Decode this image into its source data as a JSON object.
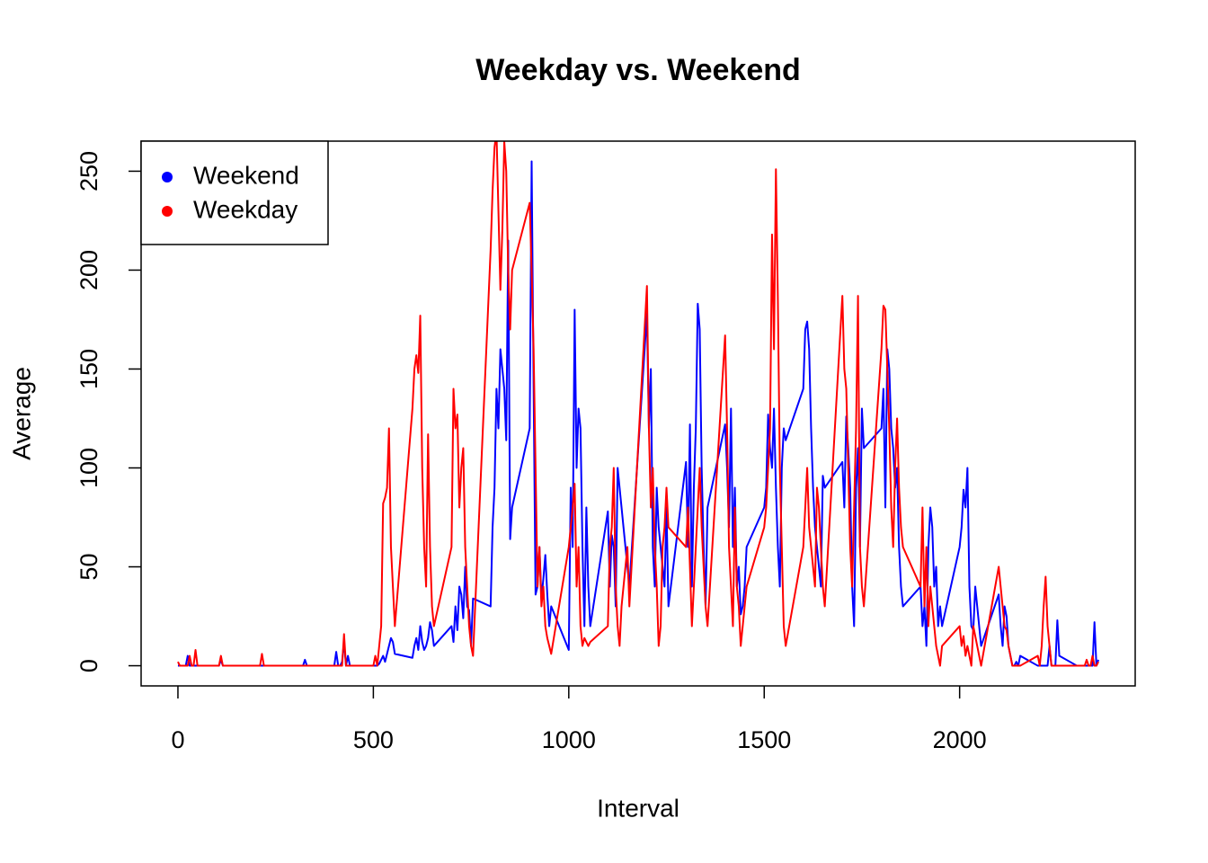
{
  "chart_data": {
    "type": "line",
    "title": "Weekday vs. Weekend",
    "x_label": "Interval",
    "y_label": "Average",
    "x": [
      0,
      5,
      10,
      15,
      20,
      25,
      30,
      35,
      40,
      45,
      50,
      55,
      100,
      105,
      110,
      115,
      120,
      125,
      130,
      135,
      140,
      145,
      150,
      155,
      200,
      205,
      210,
      215,
      220,
      225,
      230,
      235,
      240,
      245,
      250,
      255,
      300,
      305,
      310,
      315,
      320,
      325,
      330,
      335,
      340,
      345,
      350,
      355,
      400,
      405,
      410,
      415,
      420,
      425,
      430,
      435,
      440,
      445,
      450,
      455,
      500,
      505,
      510,
      515,
      520,
      525,
      530,
      535,
      540,
      545,
      550,
      555,
      600,
      605,
      610,
      615,
      620,
      625,
      630,
      635,
      640,
      645,
      650,
      655,
      700,
      705,
      710,
      715,
      720,
      725,
      730,
      735,
      740,
      745,
      750,
      755,
      800,
      805,
      810,
      815,
      820,
      825,
      830,
      835,
      840,
      845,
      850,
      855,
      900,
      905,
      910,
      915,
      920,
      925,
      930,
      935,
      940,
      945,
      950,
      955,
      1000,
      1005,
      1010,
      1015,
      1020,
      1025,
      1030,
      1035,
      1040,
      1045,
      1050,
      1055,
      1100,
      1105,
      1110,
      1115,
      1120,
      1125,
      1130,
      1135,
      1140,
      1145,
      1150,
      1155,
      1200,
      1205,
      1210,
      1215,
      1220,
      1225,
      1230,
      1235,
      1240,
      1245,
      1250,
      1255,
      1300,
      1305,
      1310,
      1315,
      1320,
      1325,
      1330,
      1335,
      1340,
      1345,
      1350,
      1355,
      1400,
      1405,
      1410,
      1415,
      1420,
      1425,
      1430,
      1435,
      1440,
      1445,
      1450,
      1455,
      1500,
      1505,
      1510,
      1515,
      1520,
      1525,
      1530,
      1535,
      1540,
      1545,
      1550,
      1555,
      1600,
      1605,
      1610,
      1615,
      1620,
      1625,
      1630,
      1635,
      1640,
      1645,
      1650,
      1655,
      1700,
      1705,
      1710,
      1715,
      1720,
      1725,
      1730,
      1735,
      1740,
      1745,
      1750,
      1755,
      1800,
      1805,
      1810,
      1815,
      1820,
      1825,
      1830,
      1835,
      1840,
      1845,
      1850,
      1855,
      1900,
      1905,
      1910,
      1915,
      1920,
      1925,
      1930,
      1935,
      1940,
      1945,
      1950,
      1955,
      2000,
      2005,
      2010,
      2015,
      2020,
      2025,
      2030,
      2035,
      2040,
      2045,
      2050,
      2055,
      2100,
      2105,
      2110,
      2115,
      2120,
      2125,
      2130,
      2135,
      2140,
      2145,
      2150,
      2155,
      2200,
      2205,
      2210,
      2215,
      2220,
      2225,
      2230,
      2235,
      2240,
      2245,
      2250,
      2255,
      2300,
      2305,
      2310,
      2315,
      2320,
      2325,
      2330,
      2335,
      2340,
      2345,
      2350,
      2355
    ],
    "series": [
      {
        "name": "Weekend",
        "color": "#0000ff",
        "values": [
          0,
          0,
          0,
          0,
          0,
          5,
          0,
          0,
          0,
          0,
          0,
          0,
          0,
          0,
          3,
          0,
          0,
          0,
          0,
          0,
          0,
          0,
          0,
          0,
          0,
          0,
          0,
          0,
          0,
          0,
          0,
          0,
          0,
          0,
          0,
          0,
          0,
          0,
          0,
          0,
          0,
          3,
          0,
          0,
          0,
          0,
          0,
          0,
          0,
          7,
          0,
          0,
          2,
          12,
          0,
          5,
          0,
          0,
          0,
          0,
          0,
          0,
          0,
          1,
          3,
          5,
          2,
          6,
          10,
          14,
          12,
          6,
          4,
          10,
          14,
          8,
          20,
          12,
          8,
          10,
          14,
          22,
          18,
          10,
          20,
          12,
          30,
          18,
          40,
          36,
          24,
          50,
          30,
          28,
          10,
          34,
          30,
          70,
          90,
          140,
          120,
          160,
          150,
          140,
          114,
          215,
          64,
          80,
          120,
          255,
          140,
          36,
          40,
          60,
          34,
          44,
          56,
          36,
          20,
          30,
          8,
          90,
          60,
          180,
          100,
          130,
          120,
          60,
          20,
          80,
          40,
          20,
          78,
          40,
          66,
          60,
          30,
          100,
          90,
          80,
          70,
          60,
          50,
          40,
          178,
          120,
          150,
          60,
          40,
          90,
          70,
          60,
          50,
          40,
          80,
          30,
          103,
          60,
          122,
          40,
          90,
          120,
          183,
          170,
          100,
          60,
          30,
          80,
          122,
          100,
          70,
          130,
          60,
          90,
          40,
          50,
          26,
          30,
          40,
          60,
          80,
          90,
          127,
          110,
          100,
          130,
          90,
          60,
          40,
          100,
          120,
          114,
          140,
          170,
          174,
          160,
          120,
          90,
          70,
          60,
          50,
          40,
          96,
          90,
          103,
          80,
          126,
          110,
          90,
          40,
          20,
          90,
          110,
          60,
          130,
          110,
          120,
          140,
          80,
          160,
          150,
          120,
          110,
          90,
          100,
          60,
          40,
          30,
          40,
          20,
          30,
          10,
          60,
          80,
          70,
          40,
          50,
          20,
          30,
          20,
          60,
          70,
          89,
          80,
          100,
          40,
          20,
          18,
          40,
          30,
          20,
          10,
          36,
          20,
          10,
          30,
          25,
          10,
          5,
          0,
          0,
          2,
          0,
          5,
          0,
          0,
          0,
          0,
          0,
          0,
          10,
          0,
          0,
          0,
          23,
          5,
          0,
          0,
          0,
          0,
          0,
          0,
          0,
          0,
          0,
          22,
          0,
          3
        ]
      },
      {
        "name": "Weekday",
        "color": "#ff0000",
        "values": [
          2,
          0,
          0,
          0,
          0,
          0,
          5,
          0,
          0,
          8,
          0,
          0,
          0,
          0,
          5,
          0,
          0,
          0,
          0,
          0,
          0,
          0,
          0,
          0,
          0,
          0,
          0,
          6,
          0,
          0,
          0,
          0,
          0,
          0,
          0,
          0,
          0,
          0,
          0,
          0,
          0,
          0,
          0,
          0,
          0,
          0,
          0,
          0,
          0,
          0,
          0,
          0,
          0,
          16,
          0,
          0,
          0,
          0,
          0,
          0,
          0,
          5,
          0,
          10,
          20,
          82,
          85,
          90,
          120,
          60,
          40,
          20,
          130,
          150,
          157,
          148,
          177,
          100,
          60,
          40,
          117,
          60,
          30,
          20,
          60,
          140,
          120,
          127,
          80,
          100,
          110,
          60,
          40,
          20,
          10,
          5,
          210,
          240,
          262,
          270,
          230,
          190,
          220,
          265,
          250,
          200,
          170,
          200,
          234,
          200,
          160,
          100,
          40,
          60,
          30,
          40,
          20,
          14,
          10,
          6,
          60,
          70,
          80,
          92,
          40,
          60,
          20,
          10,
          14,
          12,
          10,
          12,
          20,
          60,
          70,
          100,
          40,
          20,
          10,
          30,
          40,
          50,
          60,
          30,
          192,
          120,
          80,
          100,
          60,
          40,
          10,
          20,
          60,
          70,
          90,
          70,
          60,
          80,
          50,
          20,
          40,
          60,
          80,
          100,
          70,
          50,
          30,
          20,
          167,
          120,
          60,
          40,
          20,
          80,
          40,
          30,
          10,
          20,
          30,
          40,
          70,
          80,
          100,
          120,
          218,
          160,
          251,
          185,
          100,
          60,
          20,
          10,
          60,
          80,
          100,
          70,
          60,
          50,
          40,
          90,
          80,
          60,
          40,
          30,
          187,
          150,
          140,
          100,
          60,
          40,
          80,
          120,
          187,
          60,
          40,
          30,
          160,
          182,
          180,
          150,
          120,
          80,
          60,
          100,
          125,
          90,
          70,
          60,
          40,
          80,
          30,
          60,
          20,
          40,
          30,
          20,
          10,
          5,
          0,
          10,
          20,
          10,
          15,
          5,
          10,
          5,
          0,
          20,
          15,
          10,
          5,
          0,
          50,
          40,
          30,
          20,
          18,
          10,
          5,
          0,
          0,
          0,
          0,
          0,
          5,
          0,
          10,
          30,
          45,
          20,
          10,
          0,
          0,
          0,
          0,
          0,
          0,
          0,
          0,
          0,
          0,
          3,
          0,
          0,
          5,
          0,
          0,
          2
        ]
      }
    ],
    "xlim": [
      -94.2,
      2449.2
    ],
    "ylim": [
      -10.2,
      265.2
    ],
    "xticks": [
      0,
      500,
      1000,
      1500,
      2000
    ],
    "yticks": [
      0,
      50,
      100,
      150,
      200,
      250
    ],
    "legend": "topleft"
  }
}
